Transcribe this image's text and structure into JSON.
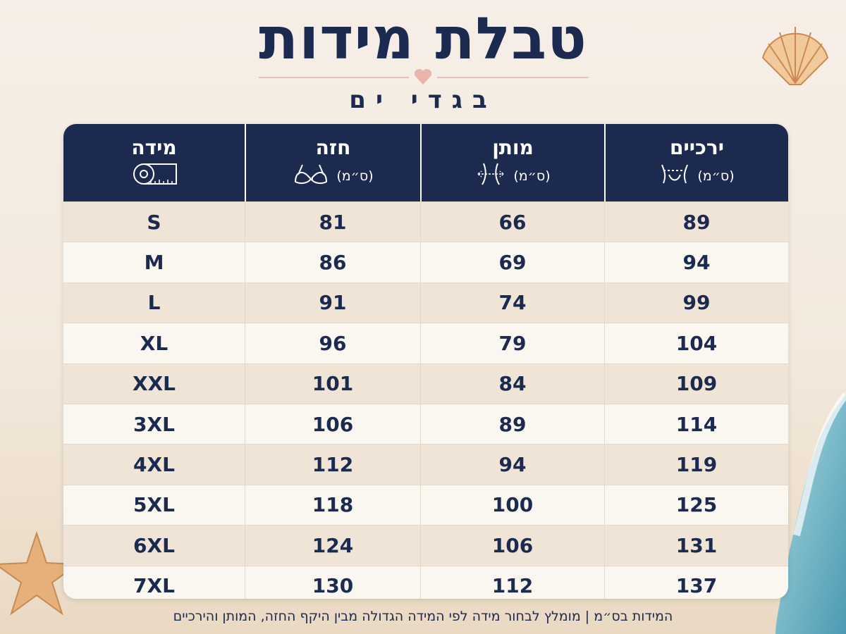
{
  "header": {
    "title": "טבלת מידות",
    "subtitle": "בגדי ים"
  },
  "table": {
    "columns": [
      {
        "name": "ירכיים",
        "unit": "(ס״מ)"
      },
      {
        "name": "מותן",
        "unit": "(ס״מ)"
      },
      {
        "name": "חזה",
        "unit": "(ס״מ)"
      },
      {
        "name": "מידה"
      }
    ],
    "rows": [
      [
        89,
        66,
        81,
        "S"
      ],
      [
        94,
        69,
        86,
        "M"
      ],
      [
        99,
        74,
        91,
        "L"
      ],
      [
        104,
        79,
        96,
        "XL"
      ],
      [
        109,
        84,
        101,
        "XXL"
      ],
      [
        114,
        89,
        106,
        "3XL"
      ],
      [
        119,
        94,
        112,
        "4XL"
      ],
      [
        125,
        100,
        118,
        "5XL"
      ],
      [
        131,
        106,
        124,
        "6XL"
      ],
      [
        137,
        112,
        130,
        "7XL"
      ]
    ]
  },
  "footer": "המידות בס״מ | מומלץ לבחור מידה לפי המידה הגדולה מבין היקף החזה, המותן והירכיים"
}
